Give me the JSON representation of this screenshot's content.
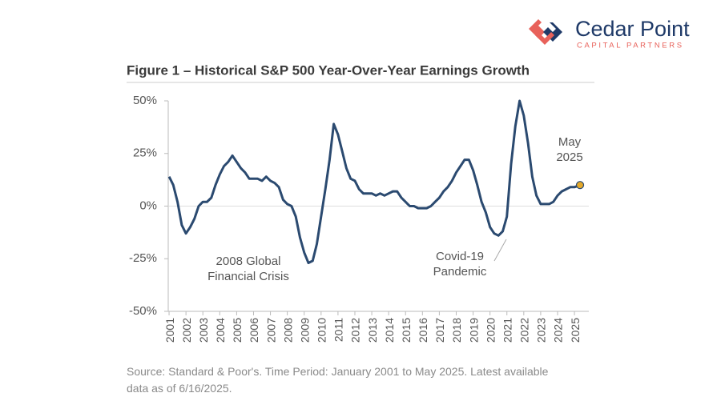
{
  "logo": {
    "name": "Cedar Point",
    "tagline": "CAPITAL PARTNERS"
  },
  "chart_data": {
    "type": "line",
    "title": "Figure 1 – Historical S&P 500 Year-Over-Year Earnings Growth",
    "source": "Source: Standard & Poor's. Time Period: January 2001 to May 2025. Latest available data as of 6/16/2025.",
    "x": [
      2001,
      2001.25,
      2001.5,
      2001.75,
      2002,
      2002.25,
      2002.5,
      2002.75,
      2003,
      2003.25,
      2003.5,
      2003.75,
      2004,
      2004.25,
      2004.5,
      2004.75,
      2005,
      2005.25,
      2005.5,
      2005.75,
      2006,
      2006.25,
      2006.5,
      2006.75,
      2007,
      2007.25,
      2007.5,
      2007.75,
      2008,
      2008.25,
      2008.5,
      2008.75,
      2009,
      2009.25,
      2009.5,
      2009.75,
      2010,
      2010.25,
      2010.5,
      2010.75,
      2011,
      2011.25,
      2011.5,
      2011.75,
      2012,
      2012.25,
      2012.5,
      2012.75,
      2013,
      2013.25,
      2013.5,
      2013.75,
      2014,
      2014.25,
      2014.5,
      2014.75,
      2015,
      2015.25,
      2015.5,
      2015.75,
      2016,
      2016.25,
      2016.5,
      2016.75,
      2017,
      2017.25,
      2017.5,
      2017.75,
      2018,
      2018.25,
      2018.5,
      2018.75,
      2019,
      2019.25,
      2019.5,
      2019.75,
      2020,
      2020.25,
      2020.5,
      2020.75,
      2021,
      2021.25,
      2021.5,
      2021.75,
      2022,
      2022.25,
      2022.5,
      2022.75,
      2023,
      2023.25,
      2023.5,
      2023.75,
      2024,
      2024.25,
      2024.5,
      2024.75,
      2025,
      2025.33
    ],
    "series": [
      {
        "name": "S&P 500 YoY Earnings Growth",
        "color": "#2b4a70",
        "values": [
          14,
          10,
          2,
          -9,
          -13,
          -10,
          -6,
          0,
          2,
          2,
          4,
          10,
          15,
          19,
          21,
          24,
          21,
          18,
          16,
          13,
          13,
          13,
          12,
          14,
          12,
          11,
          9,
          3,
          1,
          0,
          -5,
          -15,
          -22,
          -27,
          -26,
          -18,
          -5,
          8,
          22,
          39,
          34,
          26,
          18,
          13,
          12,
          8,
          6,
          6,
          6,
          5,
          6,
          5,
          6,
          7,
          7,
          4,
          2,
          0,
          0,
          -1,
          -1,
          -1,
          0,
          2,
          4,
          7,
          9,
          12,
          16,
          19,
          22,
          22,
          17,
          10,
          2,
          -3,
          -10,
          -13,
          -14,
          -12,
          -5,
          20,
          38,
          50,
          43,
          30,
          14,
          5,
          1,
          1,
          1,
          2,
          5,
          7,
          8,
          9,
          9,
          10
        ]
      }
    ],
    "endpoint_color": "#e4a82a",
    "xlim": [
      2000.95,
      2025.85
    ],
    "xticks": [
      2001,
      2002,
      2003,
      2004,
      2005,
      2006,
      2007,
      2008,
      2009,
      2010,
      2011,
      2012,
      2013,
      2014,
      2015,
      2016,
      2017,
      2018,
      2019,
      2020,
      2021,
      2022,
      2023,
      2024,
      2025
    ],
    "ylim": [
      -50,
      50
    ],
    "yticks": [
      {
        "value": -50,
        "label": "-50%"
      },
      {
        "value": -25,
        "label": "-25%"
      },
      {
        "value": 0,
        "label": "0%"
      },
      {
        "value": 25,
        "label": "25%"
      },
      {
        "value": 50,
        "label": "50%"
      }
    ],
    "zero_line": true,
    "annotations": [
      {
        "lines": [
          "2008 Global",
          "Financial Crisis"
        ]
      },
      {
        "lines": [
          "Covid-19",
          "Pandemic"
        ]
      },
      {
        "lines": [
          "May",
          "2025"
        ]
      }
    ]
  }
}
